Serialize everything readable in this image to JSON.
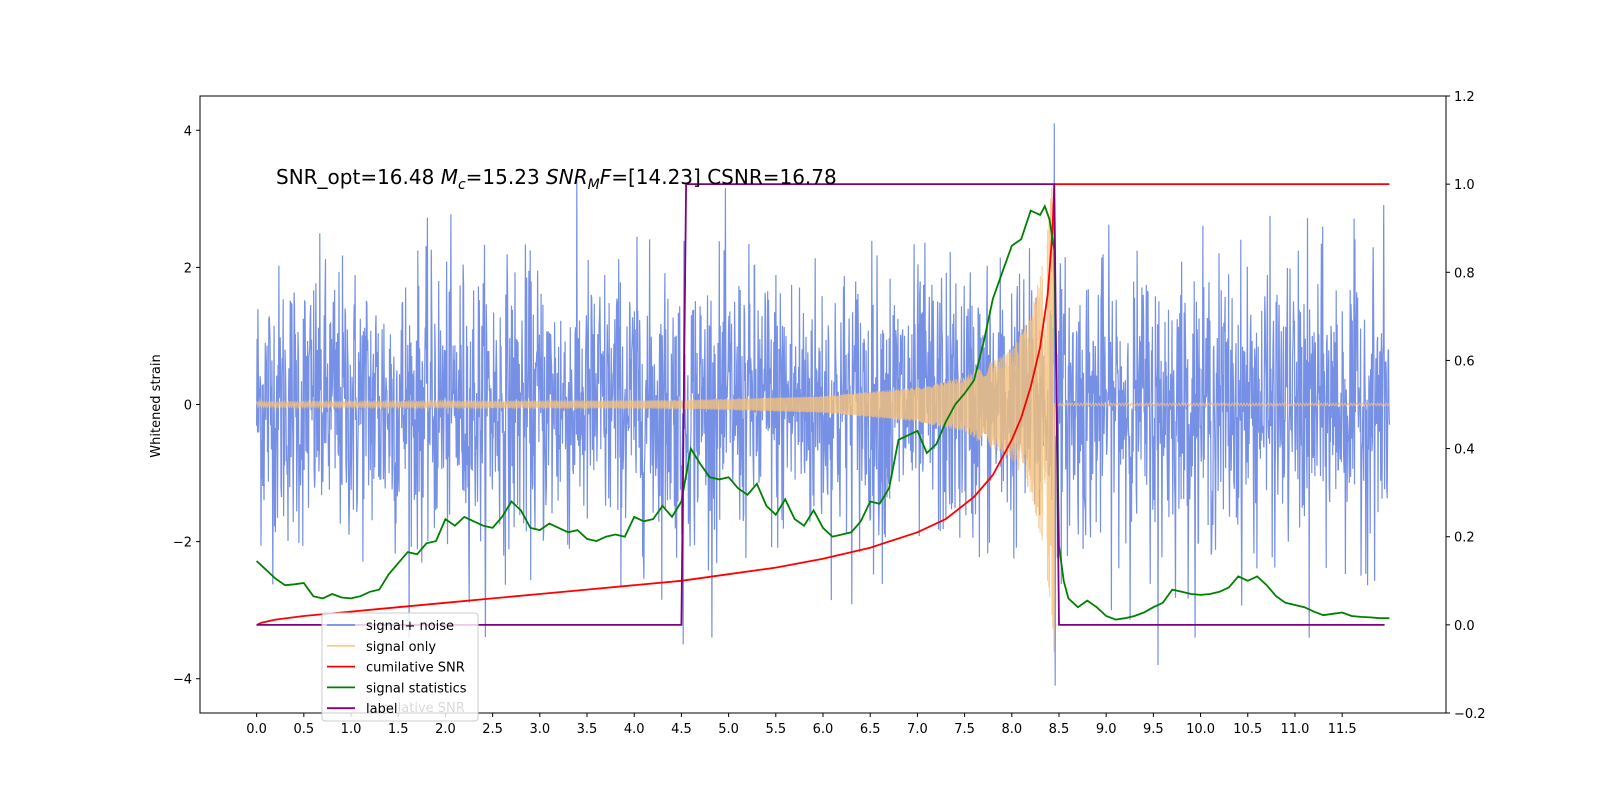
{
  "chart_data": {
    "type": "line",
    "title": "",
    "xlabel": "",
    "ylabel": "Whitened strain",
    "xlim": [
      -0.6,
      12.6
    ],
    "ylim": [
      -4.5,
      4.5
    ],
    "y2lim": [
      -0.2,
      1.2
    ],
    "x_ticks": [
      0.0,
      0.5,
      1.0,
      1.5,
      2.0,
      2.5,
      3.0,
      3.5,
      4.0,
      4.5,
      5.0,
      5.5,
      6.0,
      6.5,
      7.0,
      7.5,
      8.0,
      8.5,
      9.0,
      9.5,
      10.0,
      10.5,
      11.0,
      11.5
    ],
    "x_tick_labels": [
      "0.0",
      "0.5",
      "1.0",
      "1.5",
      "2.0",
      "2.5",
      "3.0",
      "3.5",
      "4.0",
      "4.5",
      "5.0",
      "5.5",
      "6.0",
      "6.5",
      "7.0",
      "7.5",
      "8.0",
      "8.5",
      "9.0",
      "9.5",
      "10.0",
      "10.5",
      "11.0",
      "11.5"
    ],
    "y_ticks": [
      -4,
      -2,
      0,
      2,
      4
    ],
    "y_tick_labels": [
      "−4",
      "−2",
      "0",
      "2",
      "4"
    ],
    "y2_ticks": [
      -0.2,
      0.0,
      0.2,
      0.4,
      0.6,
      0.8,
      1.0,
      1.2
    ],
    "y2_tick_labels": [
      "−0.2",
      "0.0",
      "0.2",
      "0.4",
      "0.6",
      "0.8",
      "1.0",
      "1.2"
    ],
    "grid": false,
    "legend_placement": "lower-left",
    "annotation": {
      "parts": [
        {
          "text": "SNR_opt=16.48 ",
          "italic": false,
          "sub": false
        },
        {
          "text": "M",
          "italic": true,
          "sub": false
        },
        {
          "text": "c",
          "italic": true,
          "sub": true
        },
        {
          "text": "=15.23  ",
          "italic": false,
          "sub": false
        },
        {
          "text": "SNR",
          "italic": true,
          "sub": false
        },
        {
          "text": "M",
          "italic": true,
          "sub": true
        },
        {
          "text": "F",
          "italic": true,
          "sub": false
        },
        {
          "text": "=[14.23] CSNR=16.78",
          "italic": false,
          "sub": false
        }
      ]
    },
    "legend_ghost_text": "cumilative SNR",
    "series": [
      {
        "name": "signal+ noise",
        "color": "#6f8ae4",
        "axis": "left",
        "kind": "noise",
        "x_start": 0.0,
        "x_end": 12.0,
        "std": 1.0,
        "spikes": [
          {
            "x": 4.52,
            "y": -3.5
          },
          {
            "x": 8.45,
            "y": 4.1
          },
          {
            "x": 8.46,
            "y": -4.1
          },
          {
            "x": 9.55,
            "y": -3.8
          },
          {
            "x": 11.15,
            "y": -3.4
          }
        ]
      },
      {
        "name": "signal only",
        "color": "#f5c07a",
        "axis": "left",
        "kind": "chirp",
        "x_start": 0.0,
        "x_end": 12.0,
        "merger_x": 8.45,
        "amplitude_envelope": [
          [
            0.0,
            0.04
          ],
          [
            4.5,
            0.06
          ],
          [
            6.0,
            0.12
          ],
          [
            7.0,
            0.25
          ],
          [
            7.5,
            0.4
          ],
          [
            8.0,
            0.8
          ],
          [
            8.2,
            1.3
          ],
          [
            8.35,
            2.2
          ],
          [
            8.43,
            3.3
          ],
          [
            8.45,
            3.7
          ]
        ],
        "post_merger_amplitude": 0.02
      },
      {
        "name": "cumilative SNR",
        "color": "#ff0000",
        "axis": "right",
        "x": [
          0.0,
          0.05,
          0.2,
          0.5,
          1.0,
          1.5,
          2.0,
          2.5,
          3.0,
          3.5,
          4.0,
          4.5,
          5.0,
          5.5,
          6.0,
          6.5,
          7.0,
          7.3,
          7.6,
          7.8,
          8.0,
          8.1,
          8.2,
          8.3,
          8.38,
          8.43,
          8.45,
          8.5,
          12.0
        ],
        "y": [
          0.0,
          0.005,
          0.012,
          0.02,
          0.03,
          0.04,
          0.05,
          0.06,
          0.07,
          0.08,
          0.09,
          0.1,
          0.115,
          0.13,
          0.15,
          0.175,
          0.21,
          0.24,
          0.29,
          0.34,
          0.42,
          0.47,
          0.54,
          0.63,
          0.75,
          0.89,
          1.0,
          1.0,
          1.0
        ]
      },
      {
        "name": "signal statistics",
        "color": "#008000",
        "axis": "right",
        "x": [
          0.0,
          0.1,
          0.2,
          0.3,
          0.4,
          0.5,
          0.6,
          0.7,
          0.8,
          0.9,
          1.0,
          1.1,
          1.2,
          1.3,
          1.4,
          1.5,
          1.6,
          1.7,
          1.8,
          1.9,
          2.0,
          2.1,
          2.2,
          2.3,
          2.4,
          2.5,
          2.6,
          2.7,
          2.8,
          2.9,
          3.0,
          3.1,
          3.2,
          3.3,
          3.4,
          3.5,
          3.6,
          3.7,
          3.8,
          3.9,
          4.0,
          4.1,
          4.2,
          4.3,
          4.4,
          4.5,
          4.6,
          4.7,
          4.8,
          4.9,
          5.0,
          5.1,
          5.2,
          5.3,
          5.4,
          5.5,
          5.6,
          5.7,
          5.8,
          5.9,
          6.0,
          6.1,
          6.2,
          6.3,
          6.4,
          6.5,
          6.6,
          6.7,
          6.8,
          6.9,
          7.0,
          7.1,
          7.2,
          7.3,
          7.4,
          7.5,
          7.6,
          7.7,
          7.8,
          7.9,
          8.0,
          8.1,
          8.2,
          8.3,
          8.35,
          8.4,
          8.45,
          8.5,
          8.55,
          8.6,
          8.7,
          8.8,
          8.9,
          9.0,
          9.1,
          9.2,
          9.3,
          9.4,
          9.5,
          9.6,
          9.7,
          9.8,
          9.9,
          10.0,
          10.1,
          10.2,
          10.3,
          10.4,
          10.5,
          10.6,
          10.7,
          10.8,
          10.9,
          11.0,
          11.1,
          11.2,
          11.3,
          11.4,
          11.5,
          11.6,
          11.7,
          11.8,
          11.9,
          12.0
        ],
        "y": [
          0.145,
          0.125,
          0.105,
          0.09,
          0.092,
          0.095,
          0.065,
          0.06,
          0.07,
          0.062,
          0.06,
          0.065,
          0.075,
          0.08,
          0.115,
          0.14,
          0.165,
          0.16,
          0.185,
          0.19,
          0.24,
          0.225,
          0.245,
          0.235,
          0.225,
          0.22,
          0.245,
          0.28,
          0.26,
          0.22,
          0.215,
          0.23,
          0.22,
          0.21,
          0.215,
          0.195,
          0.19,
          0.2,
          0.205,
          0.2,
          0.245,
          0.235,
          0.24,
          0.27,
          0.245,
          0.28,
          0.4,
          0.365,
          0.335,
          0.33,
          0.335,
          0.31,
          0.295,
          0.32,
          0.27,
          0.25,
          0.285,
          0.24,
          0.225,
          0.26,
          0.22,
          0.2,
          0.205,
          0.21,
          0.235,
          0.28,
          0.275,
          0.31,
          0.42,
          0.43,
          0.44,
          0.39,
          0.41,
          0.46,
          0.5,
          0.525,
          0.555,
          0.64,
          0.74,
          0.8,
          0.86,
          0.875,
          0.94,
          0.93,
          0.95,
          0.92,
          0.85,
          0.18,
          0.1,
          0.06,
          0.04,
          0.055,
          0.04,
          0.02,
          0.012,
          0.015,
          0.02,
          0.028,
          0.04,
          0.05,
          0.08,
          0.075,
          0.07,
          0.068,
          0.07,
          0.075,
          0.085,
          0.11,
          0.1,
          0.11,
          0.09,
          0.065,
          0.05,
          0.045,
          0.04,
          0.03,
          0.022,
          0.025,
          0.028,
          0.02,
          0.018,
          0.017,
          0.015,
          0.015
        ]
      },
      {
        "name": "label",
        "color": "#800080",
        "axis": "right",
        "x": [
          0.0,
          4.5,
          4.55,
          8.45,
          8.5,
          11.95
        ],
        "y": [
          0.0,
          0.0,
          1.0,
          1.0,
          0.0,
          0.0
        ]
      }
    ]
  }
}
